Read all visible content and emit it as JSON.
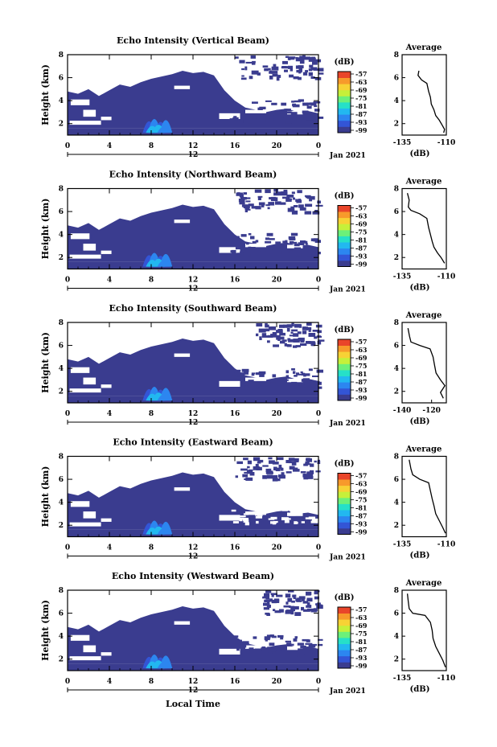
{
  "figure": {
    "footer_xlabel": "Local Time"
  },
  "colorbar": {
    "unit": "(dB)",
    "ticks": [
      "-57",
      "-63",
      "-69",
      "-75",
      "-81",
      "-87",
      "-93",
      "-99"
    ],
    "colors": [
      "#3a3c8f",
      "#3355d6",
      "#2c86f0",
      "#22b8f0",
      "#26e0c8",
      "#6cf07a",
      "#c6f03a",
      "#f7d235",
      "#f79a2b",
      "#e9452a"
    ]
  },
  "chart_data": [
    {
      "type": "heatmap",
      "title": "Echo Intensity (Vertical Beam)",
      "ylabel": "Height (km)",
      "xlim": [
        0,
        24
      ],
      "ylim": [
        1,
        8
      ],
      "xticks": [
        "0",
        "4",
        "8",
        "12",
        "16",
        "20",
        "0"
      ],
      "yticks": [
        "2",
        "4",
        "6",
        "8"
      ],
      "date_label": "Jan 2021",
      "day_label": "12",
      "profile": {
        "title": "Average",
        "xlabel": "(dB)",
        "xlim": [
          -135,
          -110
        ],
        "xticks": [
          "-135",
          "-110"
        ],
        "yticks": [
          "2",
          "4",
          "6",
          "8"
        ],
        "points": [
          [
            -125.5,
            6.6
          ],
          [
            -126,
            6.2
          ],
          [
            -124,
            5.8
          ],
          [
            -121,
            5.5
          ],
          [
            -120,
            4.8
          ],
          [
            -119,
            4.3
          ],
          [
            -118.5,
            3.7
          ],
          [
            -117,
            3.2
          ],
          [
            -116,
            2.7
          ],
          [
            -114,
            2.3
          ],
          [
            -112.5,
            1.9
          ],
          [
            -111,
            1.5
          ],
          [
            -111.5,
            1.2
          ]
        ]
      }
    },
    {
      "type": "heatmap",
      "title": "Echo Intensity (Northward Beam)",
      "ylabel": "Height (km)",
      "xlim": [
        0,
        24
      ],
      "ylim": [
        1,
        8
      ],
      "xticks": [
        "0",
        "4",
        "8",
        "12",
        "16",
        "20",
        "0"
      ],
      "yticks": [
        "2",
        "4",
        "6",
        "8"
      ],
      "date_label": "Jan 2021",
      "day_label": "12",
      "profile": {
        "title": "Average",
        "xlabel": "(dB)",
        "xlim": [
          -135,
          -110
        ],
        "xticks": [
          "-135",
          "-110"
        ],
        "yticks": [
          "2",
          "4",
          "6",
          "8"
        ],
        "points": [
          [
            -132,
            7.6
          ],
          [
            -131,
            7.0
          ],
          [
            -131.5,
            6.4
          ],
          [
            -130,
            6.1
          ],
          [
            -125,
            5.8
          ],
          [
            -121,
            5.4
          ],
          [
            -120,
            4.6
          ],
          [
            -119,
            4.0
          ],
          [
            -118,
            3.4
          ],
          [
            -117,
            2.9
          ],
          [
            -115,
            2.4
          ],
          [
            -113,
            2.0
          ],
          [
            -111,
            1.5
          ]
        ]
      }
    },
    {
      "type": "heatmap",
      "title": "Echo Intensity (Southward Beam)",
      "ylabel": "Height (km)",
      "xlim": [
        0,
        24
      ],
      "ylim": [
        1,
        8
      ],
      "xticks": [
        "0",
        "4",
        "8",
        "12",
        "16",
        "20",
        "0"
      ],
      "yticks": [
        "2",
        "4",
        "6",
        "8"
      ],
      "date_label": "Jan 2021",
      "day_label": "12",
      "profile": {
        "title": "Average",
        "xlabel": "(dB)",
        "xlim": [
          -140,
          -110
        ],
        "xticks": [
          "-140",
          "-120"
        ],
        "yticks": [
          "2",
          "4",
          "6",
          "8"
        ],
        "points": [
          [
            -136,
            7.5
          ],
          [
            -135,
            6.8
          ],
          [
            -134,
            6.3
          ],
          [
            -128,
            6.0
          ],
          [
            -121,
            5.7
          ],
          [
            -119,
            5.0
          ],
          [
            -118,
            4.3
          ],
          [
            -117,
            3.6
          ],
          [
            -114,
            3.0
          ],
          [
            -111,
            2.5
          ],
          [
            -114,
            1.9
          ],
          [
            -112,
            1.4
          ]
        ]
      }
    },
    {
      "type": "heatmap",
      "title": "Echo Intensity (Eastward Beam)",
      "ylabel": "Height (km)",
      "xlim": [
        0,
        24
      ],
      "ylim": [
        1,
        8
      ],
      "xticks": [
        "0",
        "4",
        "8",
        "12",
        "16",
        "20",
        "0"
      ],
      "yticks": [
        "2",
        "4",
        "6",
        "8"
      ],
      "date_label": "Jan 2021",
      "day_label": "12",
      "profile": {
        "title": "Average",
        "xlabel": "(dB)",
        "xlim": [
          -135,
          -110
        ],
        "xticks": [
          "-135",
          "-110"
        ],
        "yticks": [
          "2",
          "4",
          "6",
          "8"
        ],
        "points": [
          [
            -131,
            7.7
          ],
          [
            -130,
            6.9
          ],
          [
            -129,
            6.4
          ],
          [
            -125,
            6.0
          ],
          [
            -120,
            5.7
          ],
          [
            -119,
            5.0
          ],
          [
            -118,
            4.3
          ],
          [
            -117,
            3.7
          ],
          [
            -116,
            3.0
          ],
          [
            -114,
            2.4
          ],
          [
            -112,
            1.8
          ],
          [
            -110.5,
            1.3
          ]
        ]
      }
    },
    {
      "type": "heatmap",
      "title": "Echo Intensity (Westward Beam)",
      "ylabel": "Height (km)",
      "xlim": [
        0,
        24
      ],
      "ylim": [
        1,
        8
      ],
      "xticks": [
        "0",
        "4",
        "8",
        "12",
        "16",
        "20",
        "0"
      ],
      "yticks": [
        "2",
        "4",
        "6",
        "8"
      ],
      "date_label": "Jan 2021",
      "day_label": "12",
      "profile": {
        "title": "Average",
        "xlabel": "(dB)",
        "xlim": [
          -135,
          -110
        ],
        "xticks": [
          "-135",
          "-110"
        ],
        "yticks": [
          "2",
          "4",
          "6",
          "8"
        ],
        "points": [
          [
            -132,
            7.7
          ],
          [
            -131.5,
            7.0
          ],
          [
            -131,
            6.4
          ],
          [
            -129,
            6.0
          ],
          [
            -122,
            5.8
          ],
          [
            -119,
            5.2
          ],
          [
            -118,
            4.5
          ],
          [
            -117.5,
            3.8
          ],
          [
            -116,
            3.1
          ],
          [
            -114,
            2.5
          ],
          [
            -112,
            1.9
          ],
          [
            -110.5,
            1.3
          ]
        ]
      }
    }
  ]
}
